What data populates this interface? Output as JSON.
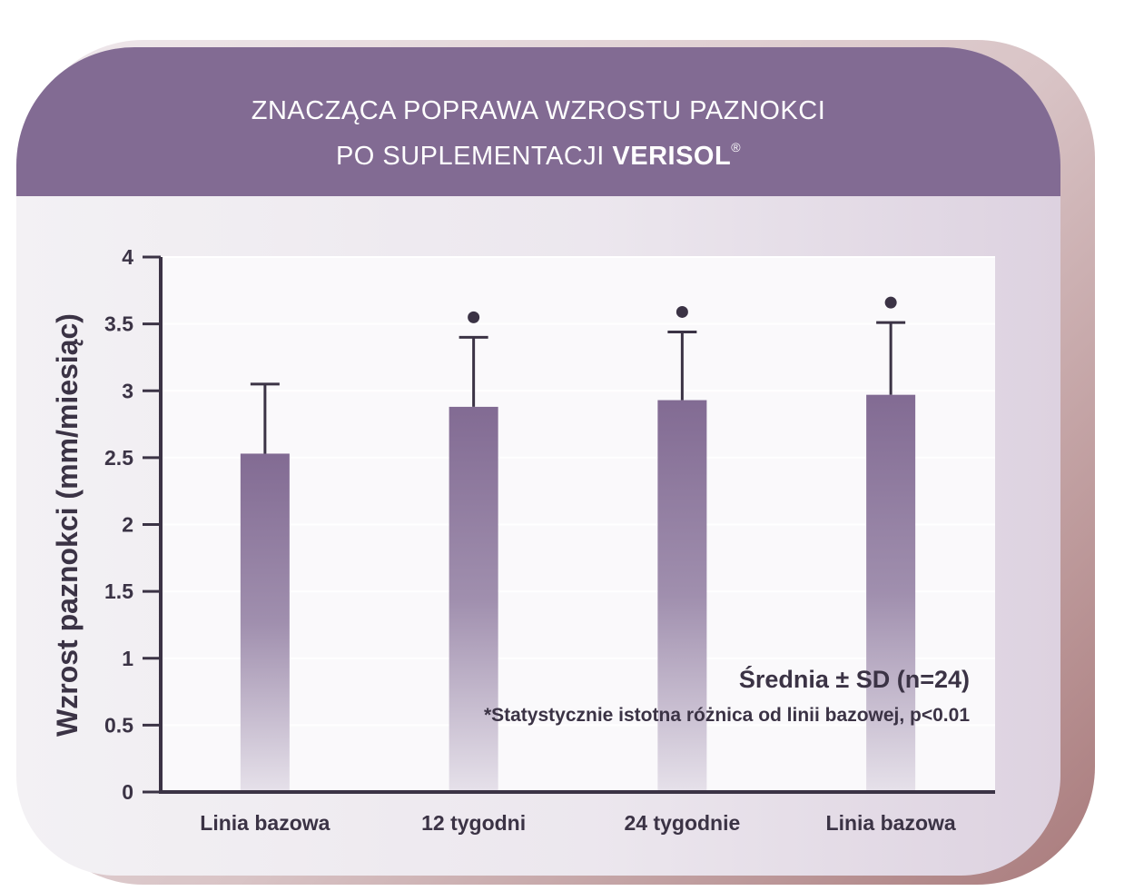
{
  "title": {
    "line1": "ZNACZĄCA POPRAWA WZROSTU PAZNOKCI",
    "line2_prefix": "PO SUPLEMENTACJI ",
    "brand": "VERISOL",
    "registered": "®"
  },
  "chart_data": {
    "type": "bar",
    "title": "ZNACZĄCA POPRAWA WZROSTU PAZNOKCI PO SUPLEMENTACJI VERISOL®",
    "xlabel": "",
    "ylabel": "Wzrost paznokci (mm/miesiąc)",
    "categories": [
      "Linia bazowa",
      "12 tygodni",
      "24 tygodnie",
      "Linia bazowa"
    ],
    "values": [
      2.53,
      2.88,
      2.93,
      2.97
    ],
    "error_upper": [
      3.05,
      3.4,
      3.44,
      3.51
    ],
    "significant": [
      false,
      true,
      true,
      true
    ],
    "ylim": [
      0,
      4
    ],
    "yticks": [
      0,
      0.5,
      1,
      1.5,
      2,
      2.5,
      3,
      3.5,
      4
    ],
    "ytick_labels": [
      "0",
      "0.5",
      "1",
      "1.5",
      "2",
      "2.5",
      "3",
      "3.5",
      "4"
    ],
    "grid": true,
    "bar_color": "#826b93",
    "annotations": [
      "Średnia ± SD (n=24)",
      "*Statystycznie istotna różnica od linii bazowej, p<0.01"
    ]
  },
  "colors": {
    "header": "#826b93",
    "axis": "#3b3345",
    "text": "#3b3345"
  }
}
